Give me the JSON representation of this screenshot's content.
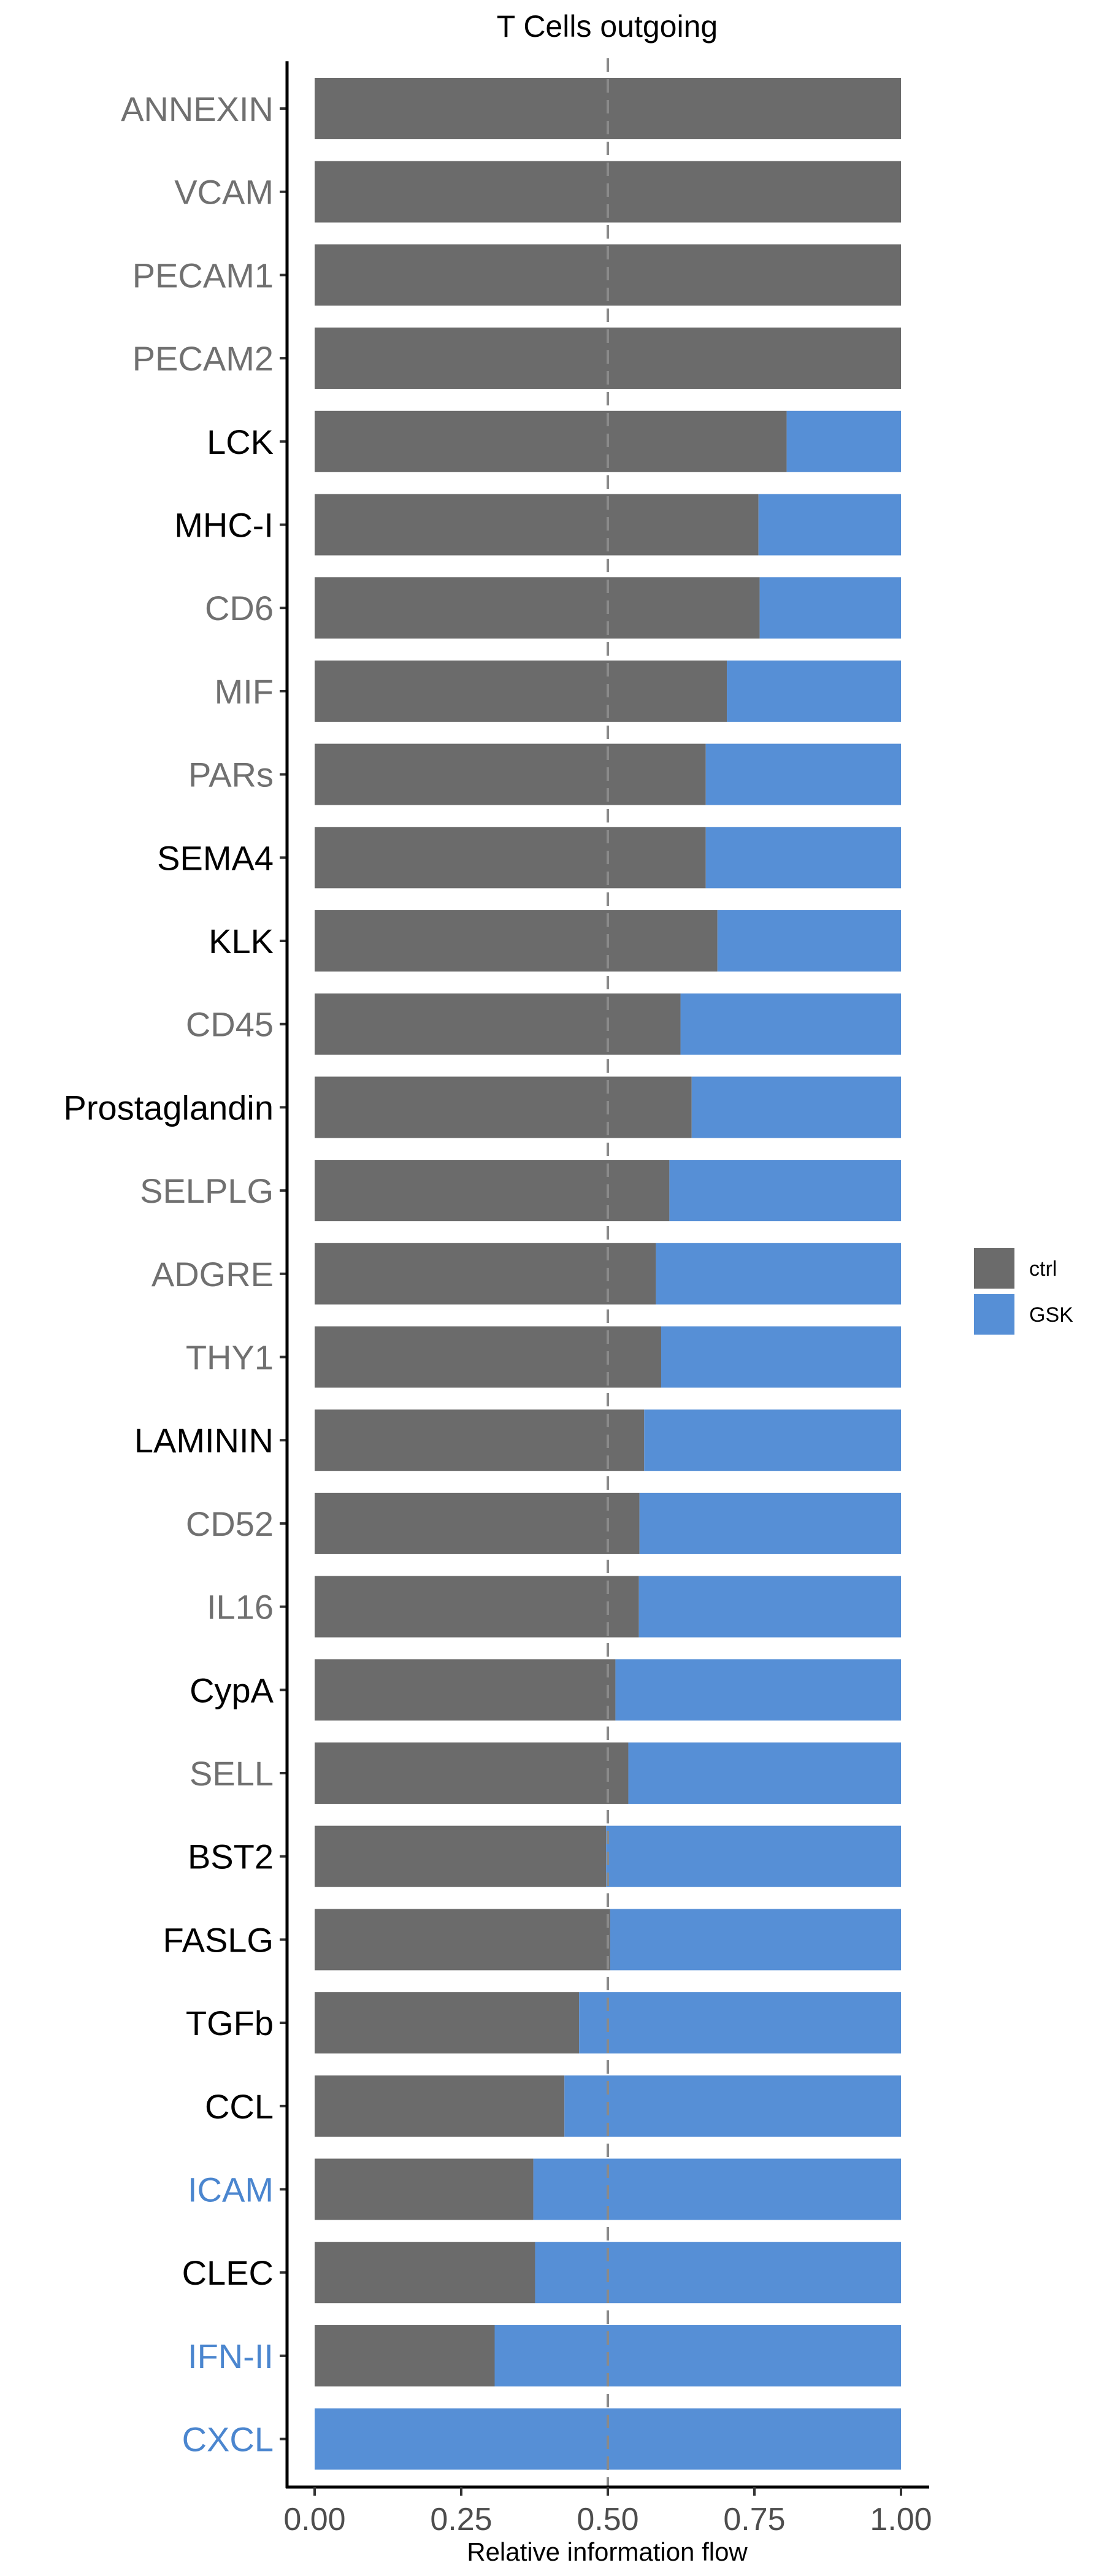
{
  "chart_data": {
    "type": "bar",
    "orientation": "horizontal",
    "stacked": true,
    "normalized": true,
    "title": "T Cells outgoing",
    "xlabel": "Relative information flow",
    "ylabel": "",
    "xlim": [
      0,
      1
    ],
    "xticks": [
      "0.00",
      "0.25",
      "0.50",
      "0.75",
      "1.00"
    ],
    "reference_line": {
      "x": 0.5,
      "style": "dashed"
    },
    "grid": false,
    "legend_position": "right",
    "colors": {
      "ctrl": "#6b6b6b",
      "GSK": "#568fd6"
    },
    "label_colors": {
      "shared": "#707070",
      "significant": "#000000",
      "GSK_enriched": "#4b86cf"
    },
    "categories": [
      {
        "name": "ANNEXIN",
        "ctrl": 1.0,
        "label_group": "shared"
      },
      {
        "name": "VCAM",
        "ctrl": 1.0,
        "label_group": "shared"
      },
      {
        "name": "PECAM1",
        "ctrl": 1.0,
        "label_group": "shared"
      },
      {
        "name": "PECAM2",
        "ctrl": 1.0,
        "label_group": "shared"
      },
      {
        "name": "LCK",
        "ctrl": 0.805,
        "label_group": "significant"
      },
      {
        "name": "MHC-I",
        "ctrl": 0.757,
        "label_group": "significant"
      },
      {
        "name": "CD6",
        "ctrl": 0.759,
        "label_group": "shared"
      },
      {
        "name": "MIF",
        "ctrl": 0.703,
        "label_group": "shared"
      },
      {
        "name": "PARs",
        "ctrl": 0.667,
        "label_group": "shared"
      },
      {
        "name": "SEMA4",
        "ctrl": 0.667,
        "label_group": "significant"
      },
      {
        "name": "KLK",
        "ctrl": 0.687,
        "label_group": "significant"
      },
      {
        "name": "CD45",
        "ctrl": 0.624,
        "label_group": "shared"
      },
      {
        "name": "Prostaglandin",
        "ctrl": 0.643,
        "label_group": "significant"
      },
      {
        "name": "SELPLG",
        "ctrl": 0.605,
        "label_group": "shared"
      },
      {
        "name": "ADGRE",
        "ctrl": 0.582,
        "label_group": "shared"
      },
      {
        "name": "THY1",
        "ctrl": 0.591,
        "label_group": "shared"
      },
      {
        "name": "LAMININ",
        "ctrl": 0.562,
        "label_group": "significant"
      },
      {
        "name": "CD52",
        "ctrl": 0.554,
        "label_group": "shared"
      },
      {
        "name": "IL16",
        "ctrl": 0.553,
        "label_group": "shared"
      },
      {
        "name": "CypA",
        "ctrl": 0.513,
        "label_group": "significant"
      },
      {
        "name": "SELL",
        "ctrl": 0.535,
        "label_group": "shared"
      },
      {
        "name": "BST2",
        "ctrl": 0.497,
        "label_group": "significant"
      },
      {
        "name": "FASLG",
        "ctrl": 0.504,
        "label_group": "significant"
      },
      {
        "name": "TGFb",
        "ctrl": 0.451,
        "label_group": "significant"
      },
      {
        "name": "CCL",
        "ctrl": 0.426,
        "label_group": "significant"
      },
      {
        "name": "ICAM",
        "ctrl": 0.373,
        "label_group": "GSK_enriched"
      },
      {
        "name": "CLEC",
        "ctrl": 0.376,
        "label_group": "significant"
      },
      {
        "name": "IFN-II",
        "ctrl": 0.307,
        "label_group": "GSK_enriched"
      },
      {
        "name": "CXCL",
        "ctrl": 0.0,
        "label_group": "GSK_enriched"
      }
    ],
    "legend": [
      {
        "name": "ctrl",
        "color": "#6b6b6b"
      },
      {
        "name": "GSK",
        "color": "#568fd6"
      }
    ]
  }
}
